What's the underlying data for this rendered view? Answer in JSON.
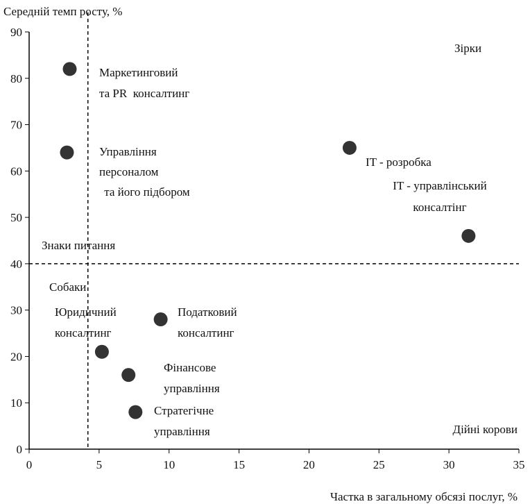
{
  "chart_data": {
    "type": "scatter",
    "y_label": "Середній темп росту, %",
    "x_label": "Частка в загальному обсязі послуг, %",
    "x": [
      2.9,
      2.7,
      22.9,
      31.4,
      9.4,
      5.2,
      7.1,
      7.6
    ],
    "values": [
      82,
      64,
      65,
      46,
      28,
      21,
      16,
      8
    ],
    "point_labels": [
      [
        "Маркетинговий",
        "та PR  консалтинг"
      ],
      [
        "Управління",
        "персоналом",
        " та його підбором"
      ],
      [
        "IT - розробка"
      ],
      [
        "IT - управлінський",
        "консалтінг"
      ],
      [
        "Податковий",
        "консалтинг"
      ],
      [
        "Юридичний",
        "консалтинг"
      ],
      [
        "Фінансове",
        "управління"
      ],
      [
        "Стратегічне",
        "управління"
      ]
    ],
    "color": "#333333",
    "dividers": {
      "x": 4.2,
      "y": 40
    },
    "quadrant_labels": [
      "Зірки",
      "Знаки питання",
      "Собаки",
      "Дійні корови"
    ],
    "xlim": [
      0,
      35
    ],
    "xticks": [
      0,
      5,
      10,
      15,
      20,
      25,
      30,
      35
    ],
    "ylim": [
      0,
      90
    ],
    "yticks": [
      0,
      10,
      20,
      30,
      40,
      50,
      60,
      70,
      80,
      90
    ],
    "grid": false
  }
}
